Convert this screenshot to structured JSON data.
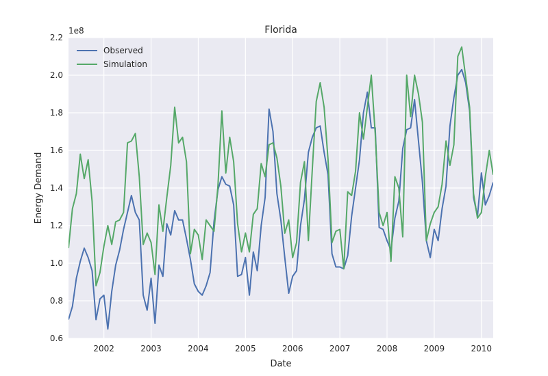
{
  "chart_data": {
    "type": "line",
    "title": "Florida",
    "xlabel": "Date",
    "ylabel": "Energy Demand",
    "y_offset_label": "1e8",
    "xlim": [
      "2001-04",
      "2010-04"
    ],
    "ylim": [
      0.6,
      2.2
    ],
    "x_ticks": [
      "2002",
      "2003",
      "2004",
      "2005",
      "2006",
      "2007",
      "2008",
      "2009",
      "2010"
    ],
    "y_ticks": [
      "0.6",
      "0.8",
      "1.0",
      "1.2",
      "1.4",
      "1.6",
      "1.8",
      "2.0",
      "2.2"
    ],
    "grid": true,
    "legend_position": "top-left",
    "x": [
      "2001-04",
      "2001-05",
      "2001-06",
      "2001-07",
      "2001-08",
      "2001-09",
      "2001-10",
      "2001-11",
      "2001-12",
      "2002-01",
      "2002-02",
      "2002-03",
      "2002-04",
      "2002-05",
      "2002-06",
      "2002-07",
      "2002-08",
      "2002-09",
      "2002-10",
      "2002-11",
      "2002-12",
      "2003-01",
      "2003-02",
      "2003-03",
      "2003-04",
      "2003-05",
      "2003-06",
      "2003-07",
      "2003-08",
      "2003-09",
      "2003-10",
      "2003-11",
      "2003-12",
      "2004-01",
      "2004-02",
      "2004-03",
      "2004-04",
      "2004-05",
      "2004-06",
      "2004-07",
      "2004-08",
      "2004-09",
      "2004-10",
      "2004-11",
      "2004-12",
      "2005-01",
      "2005-02",
      "2005-03",
      "2005-04",
      "2005-05",
      "2005-06",
      "2005-07",
      "2005-08",
      "2005-09",
      "2005-10",
      "2005-11",
      "2005-12",
      "2006-01",
      "2006-02",
      "2006-03",
      "2006-04",
      "2006-05",
      "2006-06",
      "2006-07",
      "2006-08",
      "2006-09",
      "2006-10",
      "2006-11",
      "2006-12",
      "2007-01",
      "2007-02",
      "2007-03",
      "2007-04",
      "2007-05",
      "2007-06",
      "2007-07",
      "2007-08",
      "2007-09",
      "2007-10",
      "2007-11",
      "2007-12",
      "2008-01",
      "2008-02",
      "2008-03",
      "2008-04",
      "2008-05",
      "2008-06",
      "2008-07",
      "2008-08",
      "2008-09",
      "2008-10",
      "2008-11",
      "2008-12",
      "2009-01",
      "2009-02",
      "2009-03",
      "2009-04",
      "2009-05",
      "2009-06",
      "2009-07",
      "2009-08",
      "2009-09",
      "2009-10",
      "2009-11",
      "2009-12",
      "2010-01",
      "2010-02",
      "2010-03",
      "2010-04"
    ],
    "series": [
      {
        "name": "Observed",
        "color": "#4c72b0",
        "values": [
          0.7,
          0.77,
          0.92,
          1.01,
          1.08,
          1.03,
          0.96,
          0.7,
          0.81,
          0.83,
          0.65,
          0.85,
          0.99,
          1.07,
          1.18,
          1.27,
          1.36,
          1.27,
          1.23,
          0.83,
          0.75,
          0.92,
          0.68,
          0.99,
          0.93,
          1.21,
          1.15,
          1.28,
          1.23,
          1.23,
          1.13,
          1.02,
          0.89,
          0.85,
          0.83,
          0.88,
          0.95,
          1.22,
          1.39,
          1.46,
          1.42,
          1.41,
          1.31,
          0.93,
          0.94,
          1.03,
          0.83,
          1.06,
          0.96,
          1.2,
          1.35,
          1.82,
          1.7,
          1.37,
          1.23,
          1.03,
          0.84,
          0.93,
          0.96,
          1.2,
          1.34,
          1.59,
          1.67,
          1.72,
          1.73,
          1.59,
          1.47,
          1.05,
          0.98,
          0.98,
          0.97,
          1.04,
          1.25,
          1.4,
          1.55,
          1.8,
          1.91,
          1.72,
          1.72,
          1.19,
          1.18,
          1.12,
          1.07,
          1.24,
          1.33,
          1.61,
          1.71,
          1.72,
          1.87,
          1.65,
          1.43,
          1.12,
          1.03,
          1.18,
          1.12,
          1.29,
          1.41,
          1.73,
          1.88,
          2.0,
          2.03,
          1.96,
          1.81,
          1.35,
          1.25,
          1.48,
          1.31,
          1.36,
          1.43
        ]
      },
      {
        "name": "Simulation",
        "color": "#55a868",
        "values": [
          1.08,
          1.29,
          1.37,
          1.58,
          1.45,
          1.55,
          1.33,
          0.88,
          0.95,
          1.09,
          1.2,
          1.1,
          1.22,
          1.23,
          1.27,
          1.64,
          1.65,
          1.69,
          1.46,
          1.1,
          1.16,
          1.11,
          0.94,
          1.31,
          1.17,
          1.35,
          1.52,
          1.83,
          1.64,
          1.67,
          1.54,
          1.05,
          1.18,
          1.15,
          1.02,
          1.23,
          1.2,
          1.17,
          1.41,
          1.81,
          1.48,
          1.67,
          1.54,
          1.21,
          1.06,
          1.16,
          1.06,
          1.26,
          1.29,
          1.53,
          1.46,
          1.63,
          1.64,
          1.56,
          1.41,
          1.16,
          1.23,
          1.03,
          1.11,
          1.43,
          1.54,
          1.12,
          1.5,
          1.86,
          1.96,
          1.83,
          1.55,
          1.11,
          1.17,
          1.18,
          0.97,
          1.38,
          1.36,
          1.49,
          1.8,
          1.66,
          1.83,
          2.0,
          1.69,
          1.27,
          1.2,
          1.27,
          1.01,
          1.46,
          1.4,
          1.14,
          2.0,
          1.78,
          2.0,
          1.9,
          1.75,
          1.12,
          1.21,
          1.27,
          1.3,
          1.42,
          1.65,
          1.52,
          1.63,
          2.1,
          2.15,
          1.99,
          1.83,
          1.37,
          1.24,
          1.27,
          1.46,
          1.6,
          1.47
        ]
      }
    ]
  }
}
